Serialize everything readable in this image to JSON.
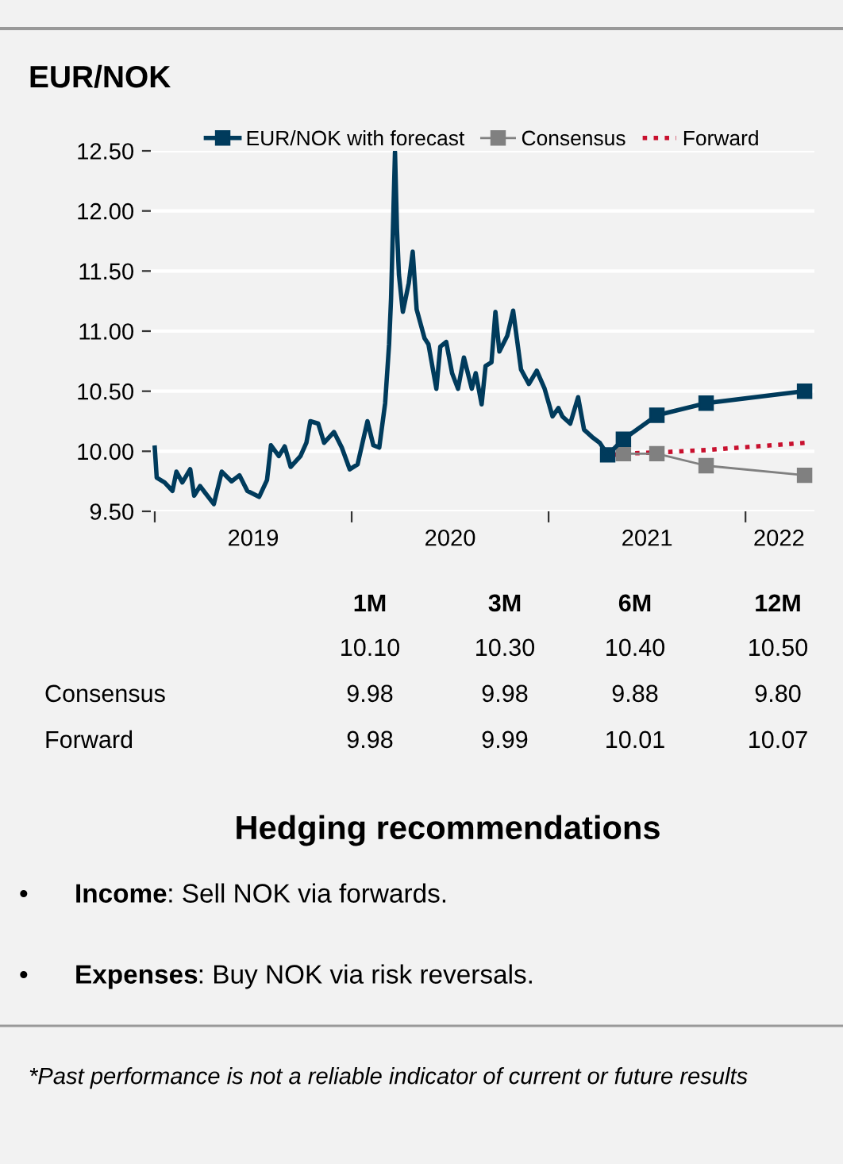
{
  "chart_data": {
    "type": "line",
    "title": "EUR/NOK",
    "series": [
      {
        "color": "#003b5c",
        "marker": "none",
        "line_style": "solid",
        "x": [
          2019.0,
          2019.01,
          2019.05,
          2019.09,
          2019.11,
          2019.14,
          2019.18,
          2019.2,
          2019.23,
          2019.3,
          2019.34,
          2019.39,
          2019.43,
          2019.47,
          2019.53,
          2019.57,
          2019.59,
          2019.63,
          2019.66,
          2019.69,
          2019.74,
          2019.77,
          2019.79,
          2019.83,
          2019.86,
          2019.91,
          2019.95,
          2019.99,
          2020.03,
          2020.08,
          2020.11,
          2020.14,
          2020.17,
          2020.19,
          2020.2,
          2020.22,
          2020.23,
          2020.24,
          2020.26,
          2020.29,
          2020.31,
          2020.33,
          2020.37,
          2020.39,
          2020.43,
          2020.45,
          2020.48,
          2020.51,
          2020.54,
          2020.57,
          2020.61,
          2020.63,
          2020.66,
          2020.68,
          2020.71,
          2020.73,
          2020.75,
          2020.79,
          2020.82,
          2020.86,
          2020.9,
          2020.94,
          2020.98,
          2021.02,
          2021.05,
          2021.07,
          2021.11,
          2021.15,
          2021.18,
          2021.22,
          2021.26,
          2021.3
        ],
        "values": [
          10.03,
          9.78,
          9.74,
          9.67,
          9.83,
          9.74,
          9.85,
          9.63,
          9.71,
          9.56,
          9.83,
          9.75,
          9.8,
          9.67,
          9.62,
          9.76,
          10.05,
          9.96,
          10.04,
          9.87,
          9.96,
          10.07,
          10.25,
          10.23,
          10.07,
          10.16,
          10.03,
          9.85,
          9.89,
          10.25,
          10.05,
          10.03,
          10.4,
          10.89,
          11.27,
          12.49,
          11.85,
          11.47,
          11.16,
          11.4,
          11.66,
          11.18,
          10.94,
          10.89,
          10.52,
          10.87,
          10.91,
          10.65,
          10.52,
          10.78,
          10.52,
          10.65,
          10.39,
          10.71,
          10.74,
          11.16,
          10.83,
          10.96,
          11.17,
          10.68,
          10.56,
          10.67,
          10.52,
          10.29,
          10.36,
          10.29,
          10.23,
          10.45,
          10.18,
          10.12,
          10.07,
          9.97
        ]
      },
      {
        "name": "EUR/NOK with forecast",
        "color": "#003b5c",
        "marker": "square",
        "line_style": "solid",
        "x": [
          2021.3,
          2021.38,
          2021.55,
          2021.8,
          2022.3
        ],
        "values": [
          9.97,
          10.1,
          10.3,
          10.4,
          10.5
        ]
      },
      {
        "name": "Consensus",
        "color": "#808080",
        "marker": "square",
        "line_style": "solid",
        "x": [
          2021.38,
          2021.55,
          2021.8,
          2022.3
        ],
        "values": [
          9.98,
          9.98,
          9.88,
          9.8
        ]
      },
      {
        "name": "Forward",
        "color": "#c8102e",
        "marker": "none",
        "line_style": "dotted",
        "x": [
          2021.33,
          2021.38,
          2021.55,
          2021.8,
          2022.3
        ],
        "values": [
          9.97,
          9.98,
          9.99,
          10.01,
          10.07
        ]
      }
    ],
    "xlim": [
      2018.98,
      2022.35
    ],
    "xticks": [
      {
        "value": 2019,
        "label": null
      },
      {
        "value": 2019.5,
        "label": "2019"
      },
      {
        "value": 2020,
        "label": null
      },
      {
        "value": 2020.5,
        "label": "2020"
      },
      {
        "value": 2021,
        "label": null
      },
      {
        "value": 2021.5,
        "label": "2021"
      },
      {
        "value": 2022,
        "label": null
      },
      {
        "value": 2022.17,
        "label": "2022"
      }
    ],
    "ylim": [
      9.5,
      12.5
    ],
    "yticks": [
      {
        "value": 9.5,
        "label": "9.50"
      },
      {
        "value": 10.0,
        "label": "10.00"
      },
      {
        "value": 10.5,
        "label": "10.50"
      },
      {
        "value": 11.0,
        "label": "11.00"
      },
      {
        "value": 11.5,
        "label": "11.50"
      },
      {
        "value": 12.0,
        "label": "12.00"
      },
      {
        "value": 12.5,
        "label": "12.50"
      }
    ],
    "grid": "y",
    "legend": "top",
    "annotations": [
      "1M",
      "3M",
      "6M",
      "12M",
      "10.10",
      "10.30",
      "10.40",
      "10.50",
      "Consensus",
      "9.98",
      "9.98",
      "9.88",
      "9.80",
      "Forward",
      "9.98",
      "9.99",
      "10.01",
      "10.07",
      "Hedging recommendations",
      "• Income: Sell NOK via forwards.",
      "• Expenses: Buy NOK via risk reversals.",
      "*Past performance is not a reliable indicator of current or future results"
    ]
  }
}
